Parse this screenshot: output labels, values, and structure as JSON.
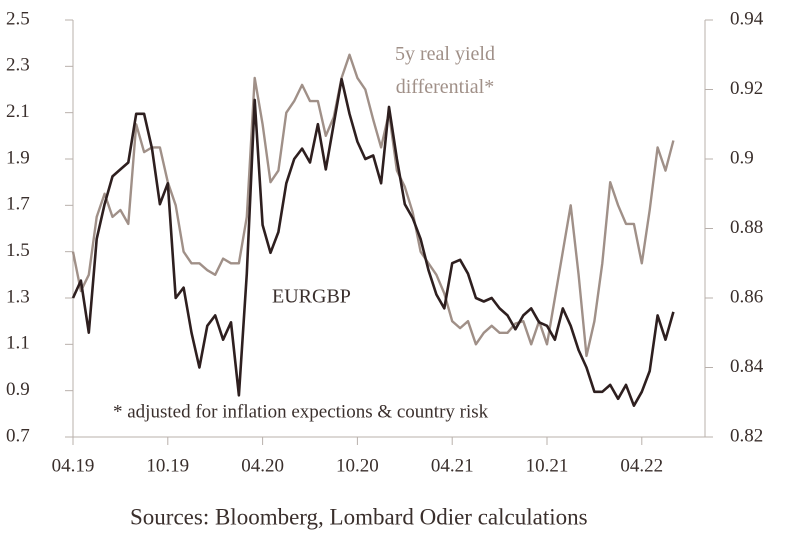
{
  "chart_data": {
    "type": "line",
    "source": "Sources: Bloomberg, Lombard Odier calculations",
    "footnote": "* adjusted for inflation expections & country risk",
    "x": [
      0,
      0.5,
      1,
      1.5,
      2,
      2.5,
      3,
      3.5,
      4,
      4.5,
      5,
      5.5,
      6,
      6.5,
      7,
      7.5,
      8,
      8.5,
      9,
      9.5,
      10,
      10.5,
      11,
      11.5,
      12,
      12.5,
      13,
      13.5,
      14,
      14.5,
      15,
      15.5,
      16,
      16.5,
      17,
      17.5,
      18,
      18.5,
      19,
      19.5,
      20,
      20.5,
      21,
      21.5,
      22,
      22.5,
      23,
      23.5,
      24,
      24.5,
      25,
      25.5,
      26,
      26.5,
      27,
      27.5,
      28,
      28.5,
      29,
      29.5,
      30,
      30.5,
      31,
      31.5,
      32,
      32.5,
      33,
      33.5,
      34,
      34.5,
      35,
      35.5,
      36,
      36.5,
      37,
      37.5,
      38
    ],
    "xlim": [
      0,
      40
    ],
    "xticks": [
      {
        "value": 0,
        "label": "04.19"
      },
      {
        "value": 6,
        "label": "10.19"
      },
      {
        "value": 12,
        "label": "04.20"
      },
      {
        "value": 18,
        "label": "10.20"
      },
      {
        "value": 24,
        "label": "04.21"
      },
      {
        "value": 30,
        "label": "10.21"
      },
      {
        "value": 36,
        "label": "04.22"
      }
    ],
    "ylim": [
      0.7,
      2.5
    ],
    "yticks": [
      0.7,
      0.9,
      1.1,
      1.3,
      1.5,
      1.7,
      1.9,
      2.1,
      2.3,
      2.5
    ],
    "y2lim": [
      0.82,
      0.94
    ],
    "y2ticks": [
      0.82,
      0.84,
      0.86,
      0.88,
      0.9,
      0.92,
      0.94
    ],
    "series": [
      {
        "name": "EURGBP",
        "color": "#2e1f1f",
        "axis": "y2",
        "values": [
          0.86,
          0.865,
          0.85,
          0.877,
          0.887,
          0.895,
          0.897,
          0.899,
          0.913,
          0.913,
          0.903,
          0.887,
          0.893,
          0.86,
          0.863,
          0.85,
          0.84,
          0.852,
          0.855,
          0.848,
          0.853,
          0.832,
          0.867,
          0.917,
          0.881,
          0.873,
          0.879,
          0.893,
          0.9,
          0.903,
          0.899,
          0.91,
          0.897,
          0.91,
          0.923,
          0.913,
          0.905,
          0.9,
          0.901,
          0.893,
          0.915,
          0.9,
          0.887,
          0.883,
          0.877,
          0.868,
          0.861,
          0.857,
          0.87,
          0.871,
          0.867,
          0.86,
          0.859,
          0.86,
          0.857,
          0.855,
          0.851,
          0.855,
          0.857,
          0.853,
          0.852,
          0.848,
          0.857,
          0.852,
          0.845,
          0.84,
          0.833,
          0.833,
          0.835,
          0.831,
          0.835,
          0.829,
          0.833,
          0.839,
          0.855,
          0.848,
          0.856
        ]
      },
      {
        "name": "5y real yield differential*",
        "color": "#a09088",
        "values": [
          1.5,
          1.33,
          1.4,
          1.65,
          1.75,
          1.65,
          1.68,
          1.62,
          2.05,
          1.93,
          1.95,
          1.95,
          1.8,
          1.7,
          1.5,
          1.45,
          1.45,
          1.42,
          1.4,
          1.47,
          1.45,
          1.45,
          1.65,
          2.25,
          2.05,
          1.8,
          1.85,
          2.1,
          2.15,
          2.22,
          2.15,
          2.15,
          2.0,
          2.08,
          2.25,
          2.35,
          2.25,
          2.2,
          2.07,
          1.95,
          2.1,
          1.85,
          1.78,
          1.67,
          1.5,
          1.45,
          1.4,
          1.32,
          1.2,
          1.17,
          1.2,
          1.1,
          1.15,
          1.18,
          1.15,
          1.15,
          1.19,
          1.2,
          1.1,
          1.2,
          1.1,
          1.3,
          1.5,
          1.7,
          1.4,
          1.05,
          1.2,
          1.45,
          1.8,
          1.7,
          1.62,
          1.62,
          1.45,
          1.68,
          1.95,
          1.85,
          1.98
        ]
      }
    ]
  }
}
